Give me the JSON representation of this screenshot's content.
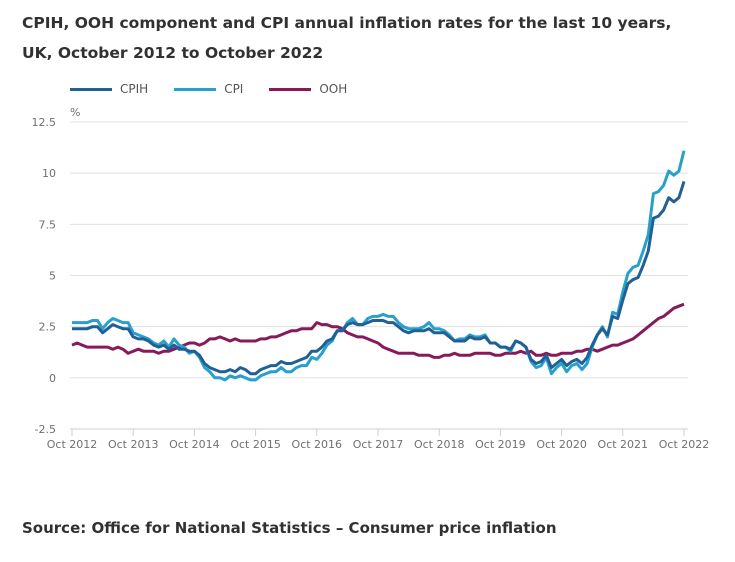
{
  "title_line1": "CPIH, OOH component and CPI annual inflation rates for the last 10 years,",
  "title_line2": "UK, October 2012 to October 2022",
  "source": "Source: Office for National Statistics – Consumer price inflation",
  "chart_data": {
    "type": "line",
    "ylabel": "%",
    "ylim": [
      -2.5,
      12.5
    ],
    "yticks": [
      "12.5",
      "10",
      "7.5",
      "5",
      "2.5",
      "0",
      "-2.5"
    ],
    "ytick_values": [
      12.5,
      10,
      7.5,
      5,
      2.5,
      0,
      -2.5
    ],
    "xticks": [
      "Oct 2012",
      "Oct 2013",
      "Oct 2014",
      "Oct 2015",
      "Oct 2016",
      "Oct 2017",
      "Oct 2018",
      "Oct 2019",
      "Oct 2020",
      "Oct 2021",
      "Oct 2022"
    ],
    "x_start": "Oct 2012",
    "x_end": "Oct 2022",
    "frequency": "monthly",
    "grid": true,
    "legend": "top-left",
    "series": [
      {
        "name": "CPIH",
        "color": "#206095",
        "values": [
          2.4,
          2.4,
          2.4,
          2.4,
          2.5,
          2.5,
          2.2,
          2.4,
          2.6,
          2.5,
          2.4,
          2.4,
          2.0,
          1.9,
          1.9,
          1.8,
          1.6,
          1.5,
          1.6,
          1.4,
          1.6,
          1.4,
          1.4,
          1.3,
          1.3,
          1.1,
          0.7,
          0.5,
          0.4,
          0.3,
          0.3,
          0.4,
          0.3,
          0.5,
          0.4,
          0.2,
          0.2,
          0.4,
          0.5,
          0.6,
          0.6,
          0.8,
          0.7,
          0.7,
          0.8,
          0.9,
          1.0,
          1.3,
          1.3,
          1.5,
          1.8,
          1.9,
          2.3,
          2.3,
          2.6,
          2.7,
          2.6,
          2.6,
          2.7,
          2.8,
          2.8,
          2.8,
          2.7,
          2.7,
          2.5,
          2.3,
          2.2,
          2.3,
          2.3,
          2.3,
          2.4,
          2.2,
          2.2,
          2.2,
          2.0,
          1.8,
          1.8,
          1.8,
          2.0,
          1.9,
          1.9,
          2.0,
          1.7,
          1.7,
          1.5,
          1.5,
          1.4,
          1.8,
          1.7,
          1.5,
          0.9,
          0.7,
          0.8,
          1.1,
          0.5,
          0.7,
          0.9,
          0.6,
          0.8,
          0.9,
          0.7,
          1.0,
          1.6,
          2.1,
          2.4,
          2.1,
          3.0,
          2.9,
          3.8,
          4.6,
          4.8,
          4.9,
          5.5,
          6.2,
          7.8,
          7.9,
          8.2,
          8.8,
          8.6,
          8.8,
          9.6
        ]
      },
      {
        "name": "CPI",
        "color": "#27a0cc",
        "values": [
          2.7,
          2.7,
          2.7,
          2.7,
          2.8,
          2.8,
          2.4,
          2.7,
          2.9,
          2.8,
          2.7,
          2.7,
          2.2,
          2.1,
          2.0,
          1.9,
          1.7,
          1.6,
          1.8,
          1.5,
          1.9,
          1.6,
          1.5,
          1.2,
          1.3,
          1.0,
          0.5,
          0.3,
          0.0,
          0.0,
          -0.1,
          0.1,
          0.0,
          0.1,
          0.0,
          -0.1,
          -0.1,
          0.1,
          0.2,
          0.3,
          0.3,
          0.5,
          0.3,
          0.3,
          0.5,
          0.6,
          0.6,
          1.0,
          0.9,
          1.2,
          1.6,
          1.8,
          2.3,
          2.3,
          2.7,
          2.9,
          2.6,
          2.6,
          2.9,
          3.0,
          3.0,
          3.1,
          3.0,
          3.0,
          2.7,
          2.5,
          2.4,
          2.4,
          2.4,
          2.5,
          2.7,
          2.4,
          2.4,
          2.3,
          2.1,
          1.8,
          1.9,
          1.9,
          2.1,
          2.0,
          2.0,
          2.1,
          1.7,
          1.7,
          1.5,
          1.5,
          1.3,
          1.8,
          1.7,
          1.5,
          0.8,
          0.5,
          0.6,
          1.0,
          0.2,
          0.5,
          0.7,
          0.3,
          0.6,
          0.7,
          0.4,
          0.7,
          1.5,
          2.1,
          2.5,
          2.0,
          3.2,
          3.1,
          4.2,
          5.1,
          5.4,
          5.5,
          6.2,
          7.0,
          9.0,
          9.1,
          9.4,
          10.1,
          9.9,
          10.1,
          11.1
        ]
      },
      {
        "name": "OOH",
        "color": "#871a5b",
        "values": [
          1.6,
          1.7,
          1.6,
          1.5,
          1.5,
          1.5,
          1.5,
          1.5,
          1.4,
          1.5,
          1.4,
          1.2,
          1.3,
          1.4,
          1.3,
          1.3,
          1.3,
          1.2,
          1.3,
          1.3,
          1.4,
          1.5,
          1.6,
          1.7,
          1.7,
          1.6,
          1.7,
          1.9,
          1.9,
          2.0,
          1.9,
          1.8,
          1.9,
          1.8,
          1.8,
          1.8,
          1.8,
          1.9,
          1.9,
          2.0,
          2.0,
          2.1,
          2.2,
          2.3,
          2.3,
          2.4,
          2.4,
          2.4,
          2.7,
          2.6,
          2.6,
          2.5,
          2.5,
          2.4,
          2.2,
          2.1,
          2.0,
          2.0,
          1.9,
          1.8,
          1.7,
          1.5,
          1.4,
          1.3,
          1.2,
          1.2,
          1.2,
          1.2,
          1.1,
          1.1,
          1.1,
          1.0,
          1.0,
          1.1,
          1.1,
          1.2,
          1.1,
          1.1,
          1.1,
          1.2,
          1.2,
          1.2,
          1.2,
          1.1,
          1.1,
          1.2,
          1.2,
          1.2,
          1.3,
          1.2,
          1.3,
          1.1,
          1.1,
          1.2,
          1.1,
          1.1,
          1.2,
          1.2,
          1.2,
          1.3,
          1.3,
          1.4,
          1.4,
          1.3,
          1.4,
          1.5,
          1.6,
          1.6,
          1.7,
          1.8,
          1.9,
          2.1,
          2.3,
          2.5,
          2.7,
          2.9,
          3.0,
          3.2,
          3.4,
          3.5,
          3.6
        ]
      }
    ]
  }
}
